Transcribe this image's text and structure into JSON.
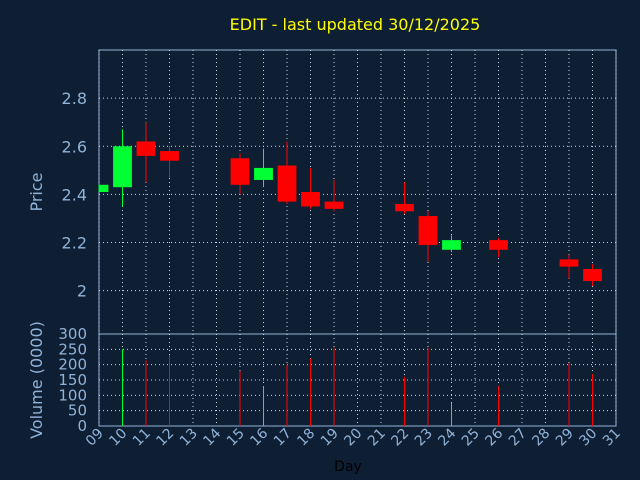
{
  "chart_data": {
    "type": "candlestick",
    "title": "EDIT - last updated 30/12/2025",
    "xlabel": "Day",
    "price_panel": {
      "ylabel": "Price",
      "ylim": [
        1.82,
        3.0
      ],
      "yticks": [
        2,
        2.2,
        2.4,
        2.6,
        2.8
      ],
      "ytick_labels": [
        "2",
        "2.2",
        "2.4",
        "2.6",
        "2.8"
      ]
    },
    "volume_panel": {
      "ylabel": "Volume (0000)",
      "ylim": [
        0,
        300
      ],
      "yticks": [
        0,
        50,
        100,
        150,
        200,
        250,
        300
      ],
      "ytick_labels": [
        "0",
        "50",
        "100",
        "150",
        "200",
        "250",
        "300"
      ]
    },
    "x_ticks": [
      "09",
      "10",
      "11",
      "12",
      "13",
      "14",
      "15",
      "16",
      "17",
      "18",
      "19",
      "20",
      "21",
      "22",
      "23",
      "24",
      "25",
      "26",
      "27",
      "28",
      "29",
      "30",
      "31"
    ],
    "colors": {
      "up": "#00ff33",
      "down": "#ff0000",
      "grid": "#c9d6e3",
      "axis": "#8fb3d9",
      "title": "#ffff00"
    },
    "candles": [
      {
        "day": 9,
        "open": 2.41,
        "high": 2.44,
        "low": 2.41,
        "close": 2.44,
        "volume": 0
      },
      {
        "day": 10,
        "open": 2.43,
        "high": 2.67,
        "low": 2.35,
        "close": 2.6,
        "volume": 250
      },
      {
        "day": 11,
        "open": 2.62,
        "high": 2.7,
        "low": 2.45,
        "close": 2.56,
        "volume": 215
      },
      {
        "day": 12,
        "open": 2.58,
        "high": 2.6,
        "low": 2.47,
        "close": 2.54,
        "volume": 232
      },
      {
        "day": 15,
        "open": 2.55,
        "high": 2.57,
        "low": 2.4,
        "close": 2.44,
        "volume": 180
      },
      {
        "day": 16,
        "open": 2.46,
        "high": 2.59,
        "low": 2.43,
        "close": 2.51,
        "volume": 130
      },
      {
        "day": 17,
        "open": 2.52,
        "high": 2.62,
        "low": 2.36,
        "close": 2.37,
        "volume": 200
      },
      {
        "day": 18,
        "open": 2.41,
        "high": 2.51,
        "low": 2.34,
        "close": 2.35,
        "volume": 220
      },
      {
        "day": 19,
        "open": 2.37,
        "high": 2.46,
        "low": 2.33,
        "close": 2.34,
        "volume": 255
      },
      {
        "day": 22,
        "open": 2.36,
        "high": 2.45,
        "low": 2.32,
        "close": 2.33,
        "volume": 160
      },
      {
        "day": 23,
        "open": 2.31,
        "high": 2.33,
        "low": 2.12,
        "close": 2.19,
        "volume": 255
      },
      {
        "day": 24,
        "open": 2.17,
        "high": 2.23,
        "low": 2.16,
        "close": 2.21,
        "volume": 75
      },
      {
        "day": 26,
        "open": 2.21,
        "high": 2.22,
        "low": 2.14,
        "close": 2.17,
        "volume": 130
      },
      {
        "day": 29,
        "open": 2.13,
        "high": 2.15,
        "low": 2.05,
        "close": 2.1,
        "volume": 205
      },
      {
        "day": 30,
        "open": 2.09,
        "high": 2.11,
        "low": 2.02,
        "close": 2.04,
        "volume": 170
      }
    ]
  }
}
